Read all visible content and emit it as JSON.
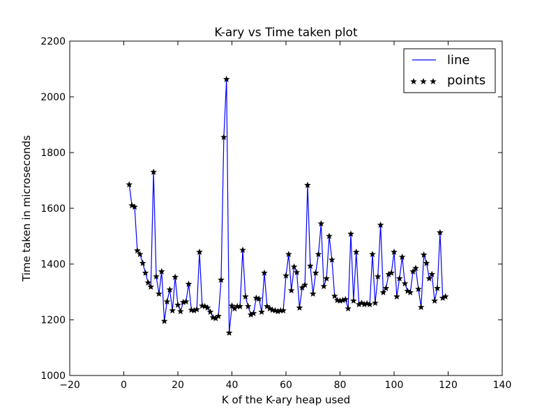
{
  "chart_data": {
    "type": "line",
    "title": "K-ary vs Time taken plot",
    "xlabel": "K of the K-ary heap used",
    "ylabel": "Time taken in microseconds",
    "xlim": [
      -20,
      140
    ],
    "ylim": [
      1000,
      2200
    ],
    "xticks": [
      -20,
      0,
      20,
      40,
      60,
      80,
      100,
      120,
      140
    ],
    "xtick_labels": [
      "−20",
      "0",
      "20",
      "40",
      "60",
      "80",
      "100",
      "120",
      "140"
    ],
    "yticks": [
      1000,
      1200,
      1400,
      1600,
      1800,
      2000,
      2200
    ],
    "ytick_labels": [
      "1000",
      "1200",
      "1400",
      "1600",
      "1800",
      "2000",
      "2200"
    ],
    "legend_position": "top-right",
    "grid": false,
    "series": [
      {
        "name": "line",
        "kind": "line",
        "color": "#0000ff"
      },
      {
        "name": "points",
        "kind": "markers",
        "marker": "star",
        "color": "#000000"
      }
    ],
    "x": [
      2,
      3,
      4,
      5,
      6,
      7,
      8,
      9,
      10,
      11,
      12,
      13,
      14,
      15,
      16,
      17,
      18,
      19,
      20,
      21,
      22,
      23,
      24,
      25,
      26,
      27,
      28,
      29,
      30,
      31,
      32,
      33,
      34,
      35,
      36,
      37,
      38,
      39,
      40,
      41,
      42,
      43,
      44,
      45,
      46,
      47,
      48,
      49,
      50,
      51,
      52,
      53,
      54,
      55,
      56,
      57,
      58,
      59,
      60,
      61,
      62,
      63,
      64,
      65,
      66,
      67,
      68,
      69,
      70,
      71,
      72,
      73,
      74,
      75,
      76,
      77,
      78,
      79,
      80,
      81,
      82,
      83,
      84,
      85,
      86,
      87,
      88,
      89,
      90,
      91,
      92,
      93,
      94,
      95,
      96,
      97,
      98,
      99,
      100,
      101,
      102,
      103,
      104,
      105,
      106,
      107,
      108,
      109,
      110,
      111,
      112,
      113,
      114,
      115,
      116,
      117,
      118,
      119
    ],
    "y": [
      1685,
      1610,
      1605,
      1448,
      1435,
      1403,
      1368,
      1333,
      1318,
      1730,
      1355,
      1293,
      1373,
      1195,
      1265,
      1308,
      1233,
      1353,
      1253,
      1230,
      1263,
      1265,
      1328,
      1235,
      1233,
      1237,
      1443,
      1250,
      1248,
      1243,
      1228,
      1208,
      1205,
      1213,
      1343,
      1855,
      2063,
      1153,
      1250,
      1240,
      1248,
      1248,
      1450,
      1283,
      1248,
      1218,
      1223,
      1278,
      1275,
      1228,
      1368,
      1248,
      1240,
      1235,
      1233,
      1230,
      1233,
      1233,
      1358,
      1435,
      1305,
      1390,
      1370,
      1243,
      1315,
      1325,
      1683,
      1393,
      1293,
      1368,
      1435,
      1545,
      1320,
      1348,
      1500,
      1415,
      1285,
      1270,
      1268,
      1270,
      1273,
      1240,
      1508,
      1268,
      1443,
      1255,
      1260,
      1255,
      1258,
      1255,
      1435,
      1260,
      1355,
      1540,
      1298,
      1313,
      1363,
      1368,
      1443,
      1283,
      1348,
      1425,
      1330,
      1303,
      1298,
      1373,
      1385,
      1310,
      1245,
      1433,
      1403,
      1348,
      1363,
      1268,
      1313,
      1513,
      1278,
      1283
    ]
  }
}
